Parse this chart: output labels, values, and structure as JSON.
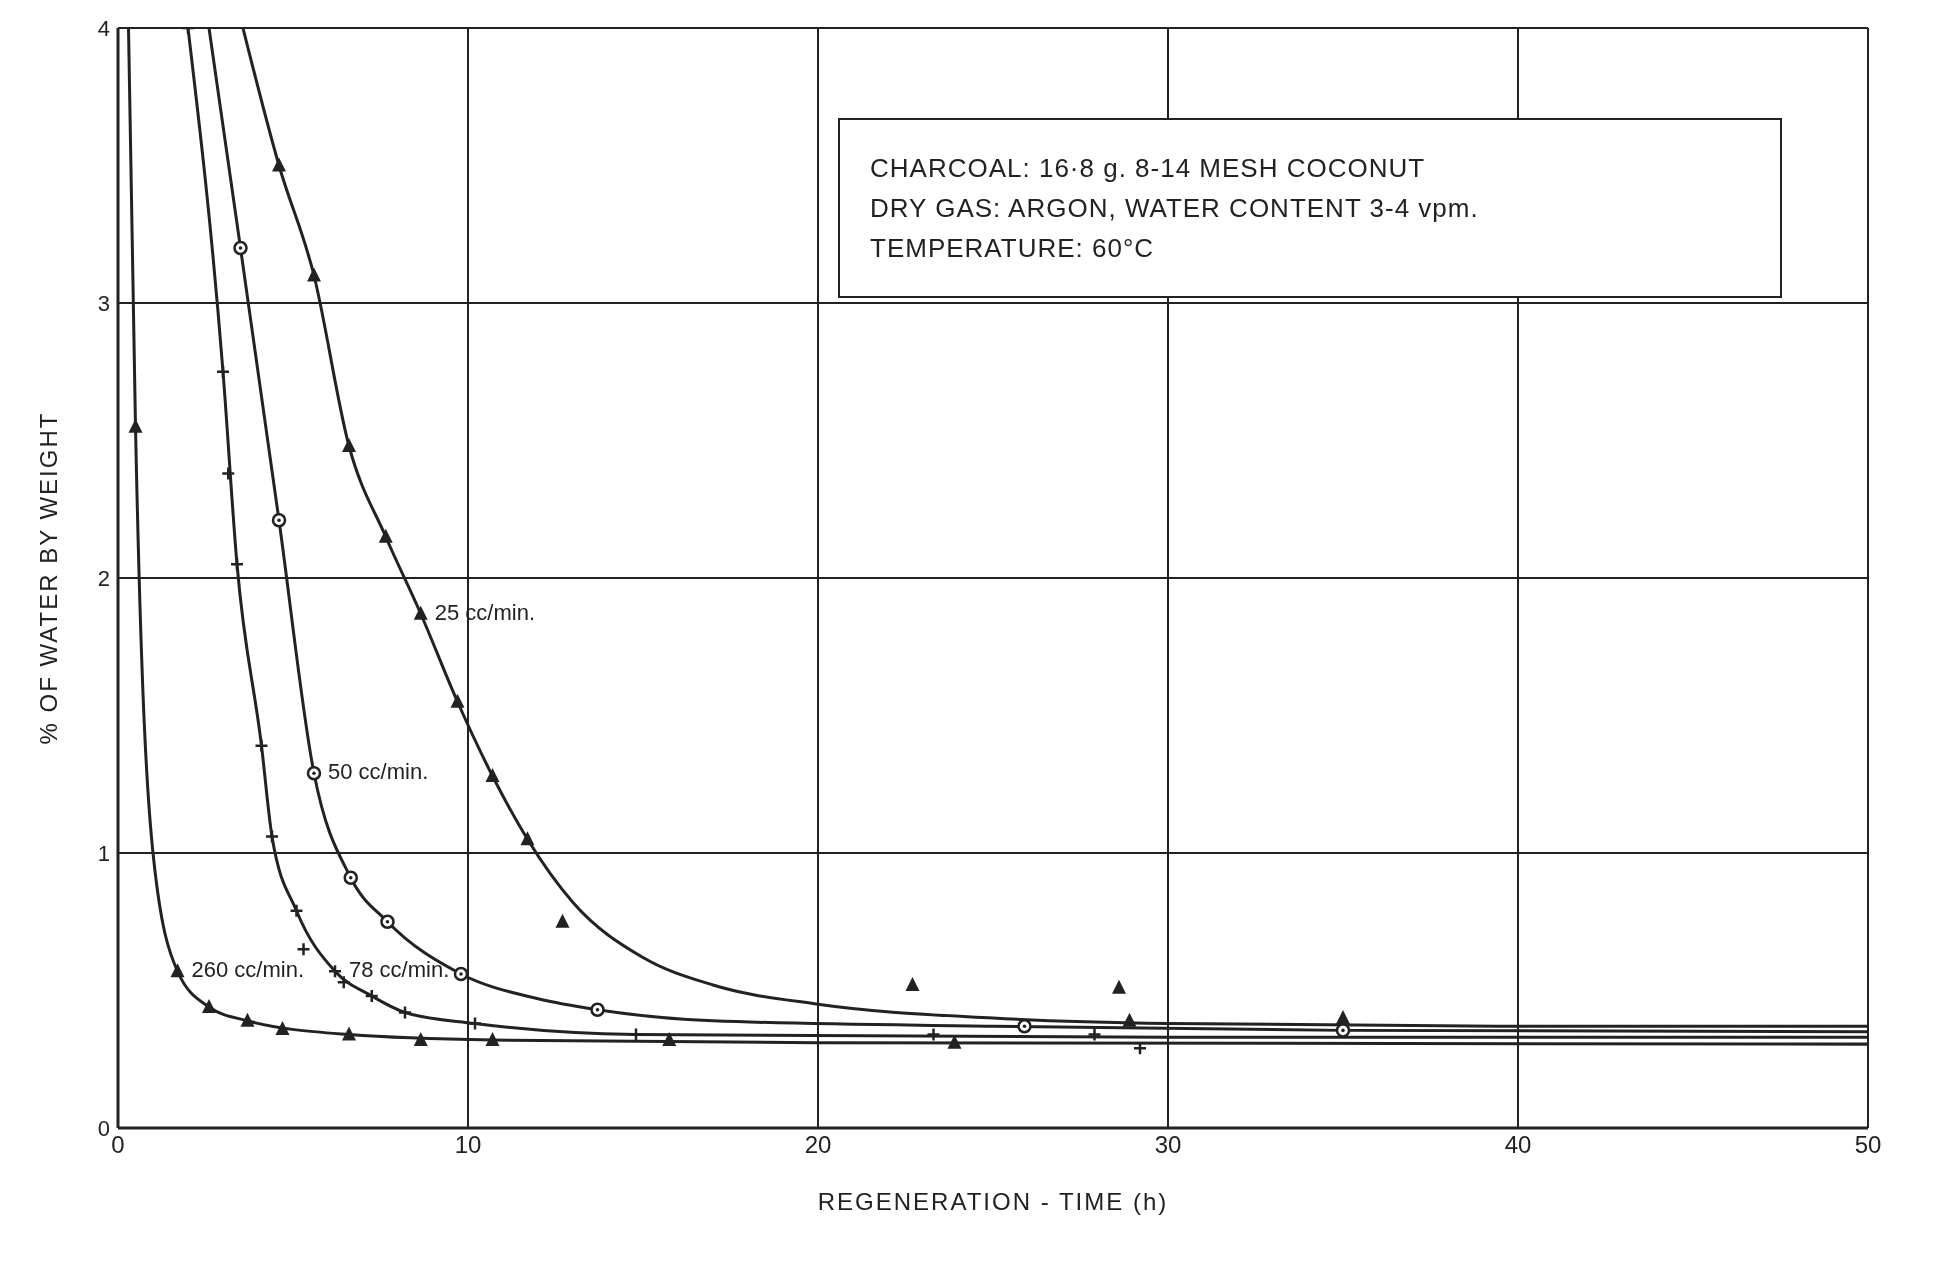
{
  "chart_data": {
    "type": "scatter",
    "xlabel": "REGENERATION - TIME (h)",
    "ylabel": "% OF WATER BY WEIGHT",
    "xlim": [
      0,
      50
    ],
    "xticks": [
      0,
      10,
      20,
      30,
      40,
      50
    ],
    "ylim": [
      0,
      4
    ],
    "yticks": [
      0,
      1,
      2,
      3,
      4
    ],
    "grid": true,
    "annotations": [
      "CHARCOAL: 16·8 g. 8-14 MESH COCONUT",
      "DRY GAS: ARGON, WATER CONTENT 3-4 vpm.",
      "TEMPERATURE: 60°C",
      {
        "text": "25 cc/min.",
        "x": 8.65,
        "y": 1.87
      },
      {
        "text": "50 cc/min.",
        "x": 5.6,
        "y": 1.29
      },
      {
        "text": "78 cc/min.",
        "x": 6.2,
        "y": 0.57
      },
      {
        "text": "260 cc/min.",
        "x": 1.7,
        "y": 0.57
      }
    ],
    "series": [
      {
        "marker": "triangle",
        "color": "#222222",
        "x": [
          4.6,
          5.6,
          6.6,
          7.65,
          8.65,
          9.7,
          10.7,
          11.7,
          12.7,
          22.7,
          28.6,
          28.9,
          35
        ],
        "values": [
          3.5,
          3.1,
          2.48,
          2.15,
          1.87,
          1.55,
          1.28,
          1.05,
          0.75,
          0.52,
          0.51,
          0.39,
          0.4
        ]
      },
      {
        "marker": "circle",
        "color": "#222222",
        "x": [
          3.5,
          4.6,
          5.6,
          6.65,
          7.7,
          9.8,
          13.7,
          25.9,
          35
        ],
        "values": [
          3.2,
          2.21,
          1.29,
          0.91,
          0.75,
          0.56,
          0.43,
          0.37,
          0.355
        ]
      },
      {
        "marker": "cross",
        "color": "#222222",
        "x": [
          2.0,
          3.0,
          3.15,
          3.4,
          4.1,
          4.4,
          5.1,
          5.3,
          6.2,
          6.45,
          7.25,
          8.2,
          10.2,
          14.8,
          23.3,
          27.9,
          29.2
        ],
        "values": [
          4.0,
          2.75,
          2.38,
          2.05,
          1.39,
          1.06,
          0.79,
          0.65,
          0.57,
          0.53,
          0.48,
          0.42,
          0.38,
          0.34,
          0.34,
          0.34,
          0.29
        ]
      },
      {
        "marker": "triangle",
        "color": "#222222",
        "x": [
          0.5,
          1.7,
          2.6,
          3.7,
          4.7,
          6.6,
          8.65,
          10.7,
          15.75,
          23.9
        ],
        "values": [
          2.55,
          0.57,
          0.44,
          0.39,
          0.36,
          0.34,
          0.32,
          0.32,
          0.32,
          0.31
        ]
      },
      {
        "type": "line",
        "color": "#222222",
        "x": [
          3.57,
          4.6,
          5.6,
          6.6,
          7.65,
          8.65,
          9.7,
          10.7,
          11.7,
          13,
          15,
          17,
          20,
          25,
          30,
          40,
          50
        ],
        "values": [
          4,
          3.5,
          3.1,
          2.48,
          2.15,
          1.87,
          1.55,
          1.28,
          1.05,
          0.82,
          0.62,
          0.52,
          0.45,
          0.4,
          0.38,
          0.37,
          0.37
        ]
      },
      {
        "type": "line",
        "color": "#222222",
        "x": [
          2.6,
          3.5,
          4.6,
          5.6,
          6.65,
          7.7,
          9.8,
          12,
          13.7,
          17,
          25,
          35,
          50
        ],
        "values": [
          4,
          3.2,
          2.21,
          1.29,
          0.91,
          0.75,
          0.56,
          0.47,
          0.43,
          0.39,
          0.37,
          0.355,
          0.35
        ]
      },
      {
        "type": "line",
        "color": "#222222",
        "x": [
          2.0,
          3.0,
          3.4,
          4.1,
          4.4,
          5.1,
          6.2,
          7.25,
          8.2,
          10.2,
          14.8,
          30,
          50
        ],
        "values": [
          4,
          2.75,
          2.05,
          1.39,
          1.06,
          0.79,
          0.57,
          0.48,
          0.42,
          0.38,
          0.34,
          0.33,
          0.33
        ]
      },
      {
        "type": "line",
        "color": "#222222",
        "x": [
          0.3,
          0.5,
          1.0,
          1.7,
          2.6,
          3.7,
          6.6,
          10.7,
          20,
          50
        ],
        "values": [
          4,
          2.55,
          1.0,
          0.57,
          0.44,
          0.39,
          0.34,
          0.32,
          0.31,
          0.305
        ]
      }
    ]
  }
}
